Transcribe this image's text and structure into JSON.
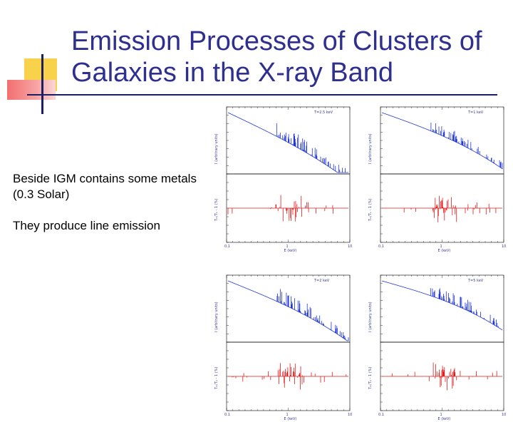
{
  "slide": {
    "title": "Emission Processes of Clusters of Galaxies in the X-ray Band",
    "bullets": [
      "Beside IGM contains some metals (0.3 Solar)",
      "They produce line emission"
    ]
  },
  "colors": {
    "title": "#2e2f8f",
    "accent_yellow": "#f7d24a",
    "accent_red": "#f36f6f",
    "rule": "#1b1f63",
    "spectrum": "#1f35d6",
    "residual": "#e31b1b"
  },
  "chart_data": [
    {
      "type": "line",
      "panel": "top-left",
      "temperature_label": "T=2.5 keV",
      "xlabel": "E (keV)",
      "ylabel_top": "I (arbitrary units)",
      "ylabel_bottom": "Tₘ/Tₑ - 1 (%)",
      "x_ticks": [
        "0.1",
        "1",
        "10"
      ]
    },
    {
      "type": "line",
      "panel": "top-right",
      "temperature_label": "T=1 keV",
      "xlabel": "E (keV)",
      "ylabel_top": "I (arbitrary units)",
      "ylabel_bottom": "Tₘ/Tₑ - 1 (%)",
      "x_ticks": [
        "0.1",
        "1",
        "10"
      ]
    },
    {
      "type": "line",
      "panel": "bottom-left",
      "temperature_label": "T=2 keV",
      "xlabel": "E (keV)",
      "ylabel_top": "I (arbitrary units)",
      "ylabel_bottom": "Tₘ/Tₑ - 1 (%)",
      "x_ticks": [
        "0.1",
        "1",
        "10"
      ]
    },
    {
      "type": "line",
      "panel": "bottom-right",
      "temperature_label": "T=5 keV",
      "xlabel": "E (keV)",
      "ylabel_top": "I (arbitrary units)",
      "ylabel_bottom": "Tₘ/Tₑ - 1 (%)",
      "x_ticks": [
        "0.1",
        "1",
        "10"
      ]
    }
  ]
}
